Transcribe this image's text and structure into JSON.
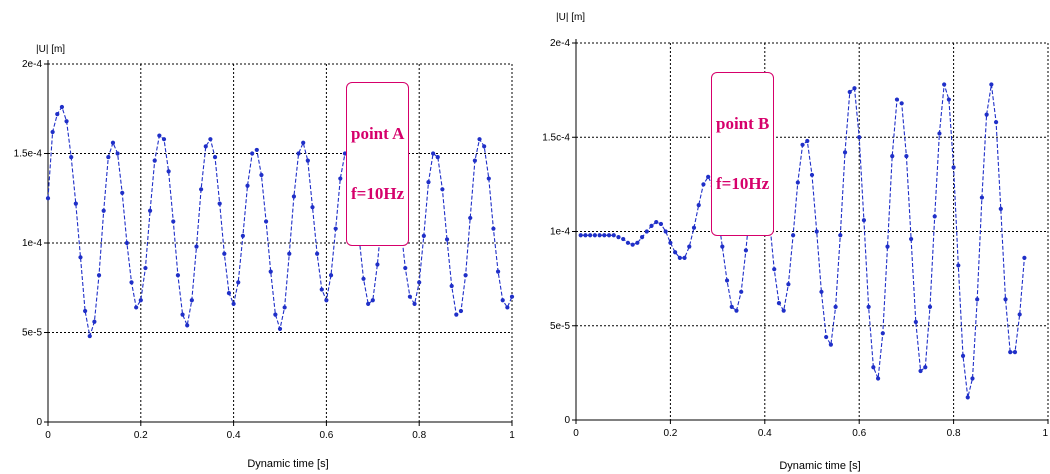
{
  "chart_data": [
    {
      "type": "line",
      "ylabel": "|U| [m]",
      "xlabel": "Dynamic time [s]",
      "xlim": [
        0,
        1
      ],
      "ylim": [
        0,
        0.0002
      ],
      "x_ticks": [
        0,
        0.2,
        0.4,
        0.6,
        0.8,
        1
      ],
      "x_tick_labels": [
        "0",
        "0.2",
        "0.4",
        "0.6",
        "0.8",
        "1"
      ],
      "y_ticks": [
        0,
        5e-05,
        0.0001,
        0.00015,
        0.0002
      ],
      "y_tick_labels": [
        "0",
        "5e-5",
        "1e-4",
        "1.5e-4",
        "2e-4"
      ],
      "grid": true,
      "annotation": [
        "point A",
        "f=10Hz"
      ],
      "series": [
        {
          "color": "#1f2fc8",
          "points": [
            [
              0.0,
              0.000125
            ],
            [
              0.01,
              0.000162
            ],
            [
              0.02,
              0.000172
            ],
            [
              0.03,
              0.000176
            ],
            [
              0.04,
              0.000168
            ],
            [
              0.05,
              0.000148
            ],
            [
              0.06,
              0.000122
            ],
            [
              0.07,
              9.2e-05
            ],
            [
              0.08,
              6.2e-05
            ],
            [
              0.09,
              4.8e-05
            ],
            [
              0.1,
              5.6e-05
            ],
            [
              0.11,
              8.2e-05
            ],
            [
              0.12,
              0.000118
            ],
            [
              0.13,
              0.000148
            ],
            [
              0.14,
              0.000156
            ],
            [
              0.15,
              0.00015
            ],
            [
              0.16,
              0.000128
            ],
            [
              0.17,
              0.0001
            ],
            [
              0.18,
              7.8e-05
            ],
            [
              0.19,
              6.4e-05
            ],
            [
              0.2,
              6.8e-05
            ],
            [
              0.21,
              8.6e-05
            ],
            [
              0.22,
              0.000118
            ],
            [
              0.23,
              0.000146
            ],
            [
              0.24,
              0.00016
            ],
            [
              0.25,
              0.000158
            ],
            [
              0.26,
              0.00014
            ],
            [
              0.27,
              0.000112
            ],
            [
              0.28,
              8.2e-05
            ],
            [
              0.29,
              6e-05
            ],
            [
              0.3,
              5.4e-05
            ],
            [
              0.31,
              6.8e-05
            ],
            [
              0.32,
              9.8e-05
            ],
            [
              0.33,
              0.00013
            ],
            [
              0.34,
              0.000154
            ],
            [
              0.35,
              0.000158
            ],
            [
              0.36,
              0.000148
            ],
            [
              0.37,
              0.000122
            ],
            [
              0.38,
              9.4e-05
            ],
            [
              0.39,
              7.2e-05
            ],
            [
              0.4,
              6.6e-05
            ],
            [
              0.41,
              7.8e-05
            ],
            [
              0.42,
              0.000104
            ],
            [
              0.43,
              0.000132
            ],
            [
              0.44,
              0.00015
            ],
            [
              0.45,
              0.000152
            ],
            [
              0.46,
              0.000138
            ],
            [
              0.47,
              0.000112
            ],
            [
              0.48,
              8.4e-05
            ],
            [
              0.49,
              6e-05
            ],
            [
              0.5,
              5.2e-05
            ],
            [
              0.51,
              6.4e-05
            ],
            [
              0.52,
              9.4e-05
            ],
            [
              0.53,
              0.000126
            ],
            [
              0.54,
              0.00015
            ],
            [
              0.55,
              0.000156
            ],
            [
              0.56,
              0.000146
            ],
            [
              0.57,
              0.00012
            ],
            [
              0.58,
              9.4e-05
            ],
            [
              0.59,
              7.4e-05
            ],
            [
              0.6,
              6.8e-05
            ],
            [
              0.61,
              8.2e-05
            ],
            [
              0.62,
              0.000108
            ],
            [
              0.63,
              0.000136
            ],
            [
              0.64,
              0.00015
            ],
            [
              0.65,
              0.000148
            ],
            [
              0.66,
              0.00013
            ],
            [
              0.67,
              0.000104
            ],
            [
              0.68,
              8e-05
            ],
            [
              0.69,
              6.6e-05
            ],
            [
              0.7,
              6.8e-05
            ],
            [
              0.71,
              8.8e-05
            ],
            [
              0.72,
              0.000116
            ],
            [
              0.73,
              0.00014
            ],
            [
              0.74,
              0.000146
            ],
            [
              0.75,
              0.000134
            ],
            [
              0.76,
              0.00011
            ],
            [
              0.77,
              8.6e-05
            ],
            [
              0.78,
              7e-05
            ],
            [
              0.79,
              6.6e-05
            ],
            [
              0.8,
              7.8e-05
            ],
            [
              0.81,
              0.000104
            ],
            [
              0.82,
              0.000134
            ],
            [
              0.83,
              0.00015
            ],
            [
              0.84,
              0.000148
            ],
            [
              0.85,
              0.00013
            ],
            [
              0.86,
              0.000102
            ],
            [
              0.87,
              7.6e-05
            ],
            [
              0.88,
              6e-05
            ],
            [
              0.89,
              6.2e-05
            ],
            [
              0.9,
              8.2e-05
            ],
            [
              0.91,
              0.000114
            ],
            [
              0.92,
              0.000146
            ],
            [
              0.93,
              0.000158
            ],
            [
              0.94,
              0.000154
            ],
            [
              0.95,
              0.000136
            ],
            [
              0.96,
              0.000108
            ],
            [
              0.97,
              8.4e-05
            ],
            [
              0.98,
              6.8e-05
            ],
            [
              0.99,
              6.4e-05
            ],
            [
              1.0,
              7e-05
            ]
          ]
        }
      ]
    },
    {
      "type": "line",
      "ylabel": "|U| [m]",
      "xlabel": "Dynamic time [s]",
      "xlim": [
        0,
        1
      ],
      "ylim": [
        0,
        0.0002
      ],
      "x_ticks": [
        0,
        0.2,
        0.4,
        0.6,
        0.8,
        1
      ],
      "x_tick_labels": [
        "0",
        "0.2",
        "0.4",
        "0.6",
        "0.8",
        "1"
      ],
      "y_ticks": [
        0,
        5e-05,
        0.0001,
        0.00015,
        0.0002
      ],
      "y_tick_labels": [
        "0",
        "5e-5",
        "1e-4",
        "1.5c-4",
        "2e-4"
      ],
      "grid": true,
      "annotation": [
        "point B",
        "f=10Hz"
      ],
      "series": [
        {
          "color": "#1f2fc8",
          "points": [
            [
              0.01,
              9.8e-05
            ],
            [
              0.02,
              9.8e-05
            ],
            [
              0.03,
              9.8e-05
            ],
            [
              0.04,
              9.8e-05
            ],
            [
              0.05,
              9.8e-05
            ],
            [
              0.06,
              9.8e-05
            ],
            [
              0.07,
              9.8e-05
            ],
            [
              0.08,
              9.8e-05
            ],
            [
              0.09,
              9.7e-05
            ],
            [
              0.1,
              9.6e-05
            ],
            [
              0.11,
              9.4e-05
            ],
            [
              0.12,
              9.3e-05
            ],
            [
              0.13,
              9.4e-05
            ],
            [
              0.14,
              9.7e-05
            ],
            [
              0.15,
              0.0001
            ],
            [
              0.16,
              0.000103
            ],
            [
              0.17,
              0.000105
            ],
            [
              0.18,
              0.000104
            ],
            [
              0.19,
              0.0001
            ],
            [
              0.2,
              9.4e-05
            ],
            [
              0.21,
              8.9e-05
            ],
            [
              0.22,
              8.6e-05
            ],
            [
              0.23,
              8.6e-05
            ],
            [
              0.24,
              9.2e-05
            ],
            [
              0.25,
              0.000102
            ],
            [
              0.26,
              0.000114
            ],
            [
              0.27,
              0.000125
            ],
            [
              0.28,
              0.000129
            ],
            [
              0.29,
              0.000124
            ],
            [
              0.3,
              0.00011
            ],
            [
              0.31,
              9.2e-05
            ],
            [
              0.32,
              7.4e-05
            ],
            [
              0.33,
              6e-05
            ],
            [
              0.34,
              5.8e-05
            ],
            [
              0.35,
              6.8e-05
            ],
            [
              0.36,
              9e-05
            ],
            [
              0.37,
              0.000116
            ],
            [
              0.38,
              0.000136
            ],
            [
              0.39,
              0.000142
            ],
            [
              0.4,
              0.00013
            ],
            [
              0.41,
              0.000106
            ],
            [
              0.42,
              8e-05
            ],
            [
              0.43,
              6.2e-05
            ],
            [
              0.44,
              5.8e-05
            ],
            [
              0.45,
              7.2e-05
            ],
            [
              0.46,
              9.8e-05
            ],
            [
              0.47,
              0.000126
            ],
            [
              0.48,
              0.000146
            ],
            [
              0.49,
              0.000148
            ],
            [
              0.5,
              0.00013
            ],
            [
              0.51,
              0.0001
            ],
            [
              0.52,
              6.8e-05
            ],
            [
              0.53,
              4.4e-05
            ],
            [
              0.54,
              4e-05
            ],
            [
              0.55,
              6e-05
            ],
            [
              0.56,
              9.8e-05
            ],
            [
              0.57,
              0.000142
            ],
            [
              0.58,
              0.000174
            ],
            [
              0.59,
              0.000176
            ],
            [
              0.6,
              0.00015
            ],
            [
              0.61,
              0.000106
            ],
            [
              0.62,
              6e-05
            ],
            [
              0.63,
              2.8e-05
            ],
            [
              0.64,
              2.2e-05
            ],
            [
              0.65,
              4.6e-05
            ],
            [
              0.66,
              9.2e-05
            ],
            [
              0.67,
              0.00014
            ],
            [
              0.68,
              0.00017
            ],
            [
              0.69,
              0.000168
            ],
            [
              0.7,
              0.00014
            ],
            [
              0.71,
              9.6e-05
            ],
            [
              0.72,
              5.2e-05
            ],
            [
              0.73,
              2.6e-05
            ],
            [
              0.74,
              2.8e-05
            ],
            [
              0.75,
              6e-05
            ],
            [
              0.76,
              0.000108
            ],
            [
              0.77,
              0.000152
            ],
            [
              0.78,
              0.000178
            ],
            [
              0.79,
              0.00017
            ],
            [
              0.8,
              0.000134
            ],
            [
              0.81,
              8.2e-05
            ],
            [
              0.82,
              3.4e-05
            ],
            [
              0.83,
              1.2e-05
            ],
            [
              0.84,
              2.2e-05
            ],
            [
              0.85,
              6.4e-05
            ],
            [
              0.86,
              0.000118
            ],
            [
              0.87,
              0.000162
            ],
            [
              0.88,
              0.000178
            ],
            [
              0.89,
              0.000158
            ],
            [
              0.9,
              0.000112
            ],
            [
              0.91,
              6.4e-05
            ],
            [
              0.92,
              3.6e-05
            ],
            [
              0.93,
              3.6e-05
            ],
            [
              0.94,
              5.6e-05
            ],
            [
              0.95,
              8.6e-05
            ]
          ]
        }
      ]
    }
  ]
}
